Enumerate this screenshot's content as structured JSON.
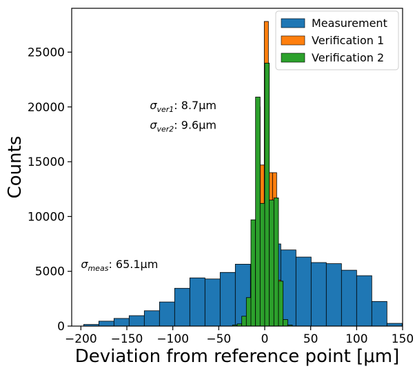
{
  "chart_data": {
    "type": "bar",
    "subtype": "histogram",
    "title": "",
    "xlabel": "Deviation from reference point [μm]",
    "ylabel": "Counts",
    "xlim": [
      -210,
      150
    ],
    "ylim": [
      0,
      29000
    ],
    "xticks": [
      -200,
      -150,
      -100,
      -50,
      0,
      50,
      100,
      150
    ],
    "yticks": [
      0,
      5000,
      10000,
      15000,
      20000,
      25000
    ],
    "grid": false,
    "legend_position": "top-right",
    "series": [
      {
        "name": "Measurement",
        "color": "#1f77b4",
        "bin_width": 16.5,
        "bins": [
          {
            "x0": -197,
            "x1": -180.5,
            "count": 150
          },
          {
            "x0": -180.5,
            "x1": -164,
            "count": 450
          },
          {
            "x0": -164,
            "x1": -147.5,
            "count": 700
          },
          {
            "x0": -147.5,
            "x1": -131,
            "count": 950
          },
          {
            "x0": -131,
            "x1": -114.5,
            "count": 1400
          },
          {
            "x0": -114.5,
            "x1": -98,
            "count": 2200
          },
          {
            "x0": -98,
            "x1": -81.5,
            "count": 3450
          },
          {
            "x0": -81.5,
            "x1": -65,
            "count": 4400
          },
          {
            "x0": -65,
            "x1": -48.5,
            "count": 4300
          },
          {
            "x0": -48.5,
            "x1": -32,
            "count": 4900
          },
          {
            "x0": -32,
            "x1": -15.5,
            "count": 5650
          },
          {
            "x0": -15.5,
            "x1": 1,
            "count": 5500
          },
          {
            "x0": 1,
            "x1": 17.5,
            "count": 7500
          },
          {
            "x0": 17.5,
            "x1": 34,
            "count": 6950
          },
          {
            "x0": 34,
            "x1": 50.5,
            "count": 6300
          },
          {
            "x0": 50.5,
            "x1": 67,
            "count": 5800
          },
          {
            "x0": 67,
            "x1": 83.5,
            "count": 5700
          },
          {
            "x0": 83.5,
            "x1": 100,
            "count": 5100
          },
          {
            "x0": 100,
            "x1": 116.5,
            "count": 4600
          },
          {
            "x0": 116.5,
            "x1": 133,
            "count": 2250
          },
          {
            "x0": 133,
            "x1": 149.5,
            "count": 250
          }
        ]
      },
      {
        "name": "Verification 1",
        "color": "#ff7f0e",
        "bin_width": 4.5,
        "bins": [
          {
            "x0": -23,
            "x1": -18.5,
            "count": 150
          },
          {
            "x0": -18.5,
            "x1": -14,
            "count": 500
          },
          {
            "x0": -14,
            "x1": -9.5,
            "count": 3300
          },
          {
            "x0": -9.5,
            "x1": -5,
            "count": 20000
          },
          {
            "x0": -5,
            "x1": -0.5,
            "count": 14700
          },
          {
            "x0": -0.5,
            "x1": 4,
            "count": 27800
          },
          {
            "x0": 4,
            "x1": 8.5,
            "count": 14000
          },
          {
            "x0": 8.5,
            "x1": 13,
            "count": 14000
          },
          {
            "x0": 13,
            "x1": 17.5,
            "count": 4200
          },
          {
            "x0": 17.5,
            "x1": 22,
            "count": 200
          }
        ]
      },
      {
        "name": "Verification 2",
        "color": "#2ca02c",
        "bin_width": 5,
        "bins": [
          {
            "x0": -35,
            "x1": -30,
            "count": 100
          },
          {
            "x0": -30,
            "x1": -25,
            "count": 200
          },
          {
            "x0": -25,
            "x1": -20,
            "count": 900
          },
          {
            "x0": -20,
            "x1": -15,
            "count": 2600
          },
          {
            "x0": -15,
            "x1": -10,
            "count": 9700
          },
          {
            "x0": -10,
            "x1": -5,
            "count": 20900
          },
          {
            "x0": -5,
            "x1": 0,
            "count": 11200
          },
          {
            "x0": 0,
            "x1": 5,
            "count": 24000
          },
          {
            "x0": 5,
            "x1": 10,
            "count": 11500
          },
          {
            "x0": 10,
            "x1": 15,
            "count": 11700
          },
          {
            "x0": 15,
            "x1": 20,
            "count": 4100
          },
          {
            "x0": 20,
            "x1": 25,
            "count": 600
          },
          {
            "x0": 25,
            "x1": 30,
            "count": 100
          }
        ]
      }
    ],
    "annotations": [
      {
        "base": "σ",
        "sub": "ver1",
        "text": ": 8.7μm",
        "at": [
          -125,
          19800
        ]
      },
      {
        "base": "σ",
        "sub": "ver2",
        "text": ": 9.6μm",
        "at": [
          -125,
          18000
        ]
      },
      {
        "base": "σ",
        "sub": "meas",
        "text": ": 65.1μm",
        "at": [
          -200,
          5300
        ]
      }
    ]
  }
}
